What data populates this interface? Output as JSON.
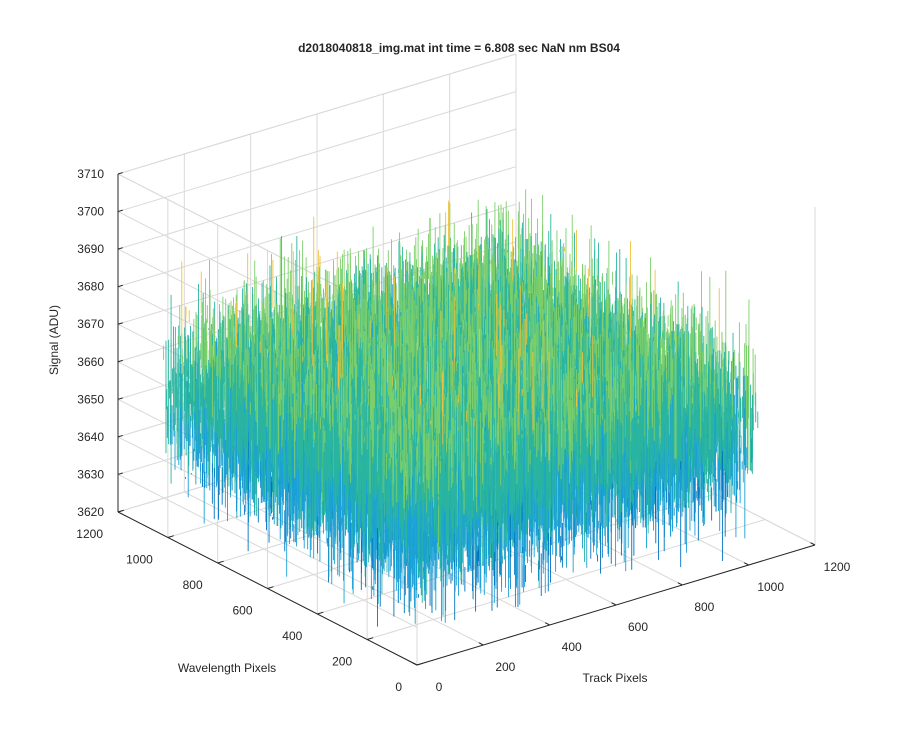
{
  "chart_data": {
    "type": "surface",
    "title": "d2018040818_img.mat int time = 6.808 sec  NaN nm BS04",
    "xlabel": "Track Pixels",
    "ylabel": "Wavelength Pixels",
    "zlabel": "Signal (ADU)",
    "xlim": [
      0,
      1200
    ],
    "ylim": [
      0,
      1200
    ],
    "zlim": [
      3620,
      3710
    ],
    "x_ticks": [
      "0",
      "200",
      "400",
      "600",
      "800",
      "1000",
      "1200"
    ],
    "y_ticks": [
      "0",
      "200",
      "400",
      "600",
      "800",
      "1000",
      "1200"
    ],
    "z_ticks": [
      "3620",
      "3630",
      "3640",
      "3650",
      "3660",
      "3670",
      "3680",
      "3690",
      "3700",
      "3710"
    ],
    "data_extent": {
      "x": [
        0,
        1024
      ],
      "y": [
        0,
        1024
      ]
    },
    "signal_mean": 3657,
    "signal_typical_range": [
      3628,
      3690
    ],
    "signal_extremes": [
      3620,
      3705
    ],
    "grid": true,
    "colormap": "parula",
    "colors": {
      "low": "#0072bd",
      "mid_low": "#1aa0d6",
      "mid": "#2ab5a0",
      "mid_high": "#7ccf6a",
      "high": "#f0c23a",
      "axis": "#262626",
      "grid": "#d9d9d9"
    }
  }
}
